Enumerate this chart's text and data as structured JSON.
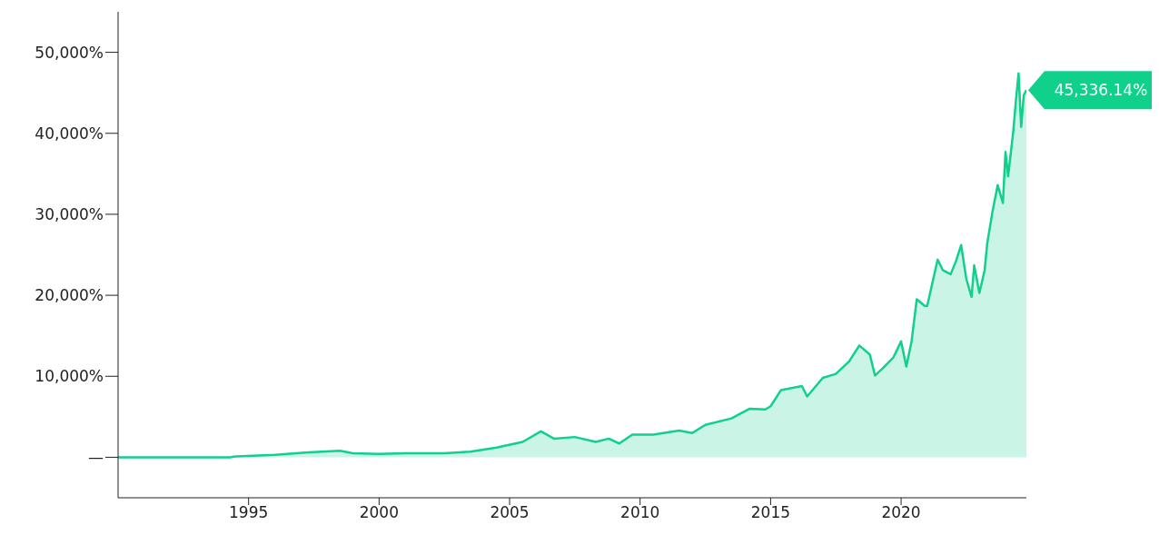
{
  "chart_data": {
    "type": "area",
    "xlim": [
      1990,
      2024.8
    ],
    "xticks": [
      1995,
      2000,
      2005,
      2010,
      2015,
      2020
    ],
    "ylim": [
      -5000,
      55000
    ],
    "yticks": [
      {
        "value": 0,
        "label": "—"
      },
      {
        "value": 10000,
        "label": "10,000%"
      },
      {
        "value": 20000,
        "label": "20,000%"
      },
      {
        "value": 30000,
        "label": "30,000%"
      },
      {
        "value": 40000,
        "label": "40,000%"
      },
      {
        "value": 50000,
        "label": "50,000%"
      }
    ],
    "x": [
      1990,
      1994.3,
      1994.5,
      1996,
      1997.3,
      1998.5,
      1999,
      2000,
      2001,
      2002.5,
      2003.5,
      2004.5,
      2005.5,
      2006.2,
      2006.7,
      2007.5,
      2008.3,
      2008.8,
      2009.2,
      2009.7,
      2010.5,
      2011.5,
      2012,
      2012.5,
      2013.5,
      2014.2,
      2014.8,
      2015,
      2015.4,
      2016.2,
      2016.4,
      2017,
      2017.5,
      2018,
      2018.4,
      2018.8,
      2019,
      2019.3,
      2019.7,
      2020,
      2020.2,
      2020.4,
      2020.6,
      2020.9,
      2021,
      2021.4,
      2021.6,
      2021.9,
      2022.1,
      2022.3,
      2022.5,
      2022.7,
      2022.8,
      2023,
      2023.2,
      2023.3,
      2023.5,
      2023.7,
      2023.9,
      2024,
      2024.1,
      2024.3,
      2024.4,
      2024.5,
      2024.6,
      2024.7,
      2024.8
    ],
    "series": [
      {
        "color": "#0fd18b",
        "values": [
          0,
          0,
          100,
          300,
          600,
          800,
          500,
          400,
          500,
          500,
          700,
          1200,
          1900,
          3200,
          2300,
          2500,
          1900,
          2300,
          1700,
          2800,
          2800,
          3300,
          3000,
          4000,
          4800,
          6000,
          5900,
          6300,
          8300,
          8800,
          7500,
          9800,
          10300,
          11800,
          13800,
          12700,
          10100,
          11000,
          12300,
          14300,
          11200,
          14300,
          19500,
          18700,
          18700,
          24400,
          23100,
          22600,
          24200,
          26200,
          22000,
          19800,
          23700,
          20300,
          23100,
          26400,
          30300,
          33600,
          31400,
          37700,
          34700,
          40300,
          44100,
          47400,
          40800,
          44700,
          45336.14
        ]
      }
    ],
    "annotations": [
      {
        "text": "45,336.14%",
        "x": 2024.8,
        "y": 45336.14
      }
    ]
  }
}
